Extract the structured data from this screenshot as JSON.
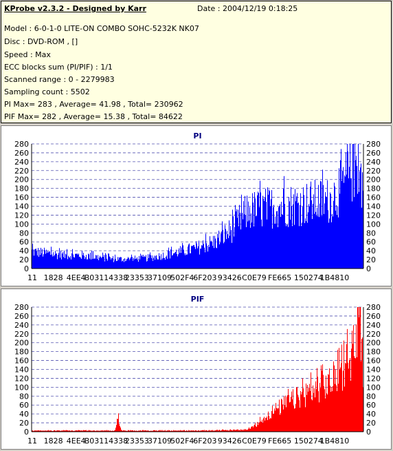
{
  "info": {
    "title": "KProbe v2.3.2 - Designed by Karr",
    "date": "Date : 2004/12/19 0:18:25",
    "lines": [
      "Model : 6-0-1-0 LITE-ON COMBO SOHC-5232K NK07",
      "Disc : DVD-ROM ,  []",
      "Speed : Max",
      "ECC blocks sum (PI/PIF) : 1/1",
      "Scanned range : 0 - 2279983",
      "Sampling count : 5502",
      "PI Max= 283 , Average= 41.98 , Total= 230962",
      "PIF Max= 282 , Average= 15.38 , Total= 84622"
    ]
  },
  "chart_data": [
    {
      "type": "bar",
      "title": "PI",
      "color": "#0000ff",
      "ylim": [
        0,
        280
      ],
      "yticks": [
        0,
        20,
        40,
        60,
        80,
        100,
        120,
        140,
        160,
        180,
        200,
        220,
        240,
        260,
        280
      ],
      "grid": true,
      "x_tick_labels": [
        "11",
        "1828",
        "4EE4",
        "B031",
        "14338",
        "23353",
        "37109",
        "502F4",
        "6F203",
        "93426",
        "C0E79",
        "FE665",
        "150274",
        "1B4810"
      ],
      "x": [
        0,
        0.05,
        0.1,
        0.15,
        0.2,
        0.25,
        0.3,
        0.35,
        0.4,
        0.45,
        0.5,
        0.55,
        0.6,
        0.65,
        0.7,
        0.75,
        0.8,
        0.85,
        0.9,
        0.93,
        0.96,
        0.98,
        1.0
      ],
      "values": [
        45,
        40,
        35,
        35,
        30,
        25,
        25,
        28,
        35,
        45,
        55,
        70,
        100,
        150,
        160,
        165,
        170,
        175,
        180,
        210,
        250,
        283,
        220
      ]
    },
    {
      "type": "bar",
      "title": "PIF",
      "color": "#ff0000",
      "ylim": [
        0,
        280
      ],
      "yticks": [
        0,
        20,
        40,
        60,
        80,
        100,
        120,
        140,
        160,
        180,
        200,
        220,
        240,
        260,
        280
      ],
      "grid": true,
      "x_tick_labels": [
        "11",
        "1828",
        "4EE4",
        "B031",
        "14338",
        "23353",
        "37109",
        "502F4",
        "6F203",
        "93426",
        "C0E79",
        "FE665",
        "150274",
        "1B4810"
      ],
      "x": [
        0,
        0.25,
        0.26,
        0.27,
        0.5,
        0.65,
        0.68,
        0.72,
        0.78,
        0.85,
        0.9,
        0.94,
        0.97,
        0.985,
        1.0
      ],
      "values": [
        3,
        3,
        42,
        3,
        3,
        5,
        20,
        50,
        80,
        110,
        130,
        160,
        220,
        282,
        180
      ]
    }
  ]
}
